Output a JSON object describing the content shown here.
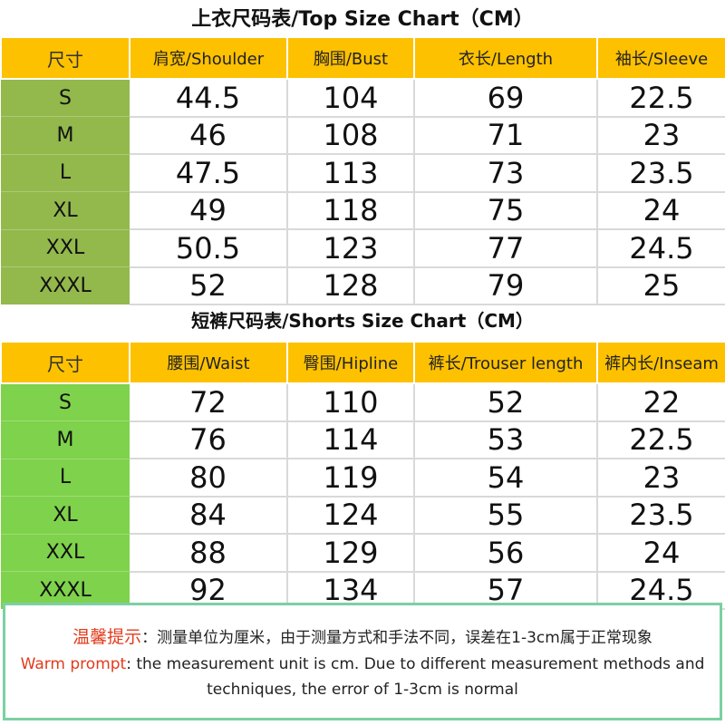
{
  "top_chart": {
    "title": "上衣尺码表/Top Size Chart（CM）",
    "headers": [
      "尺寸",
      "肩宽/Shoulder",
      "胸围/Bust",
      "衣长/Length",
      "袖长/Sleeve"
    ],
    "rows": [
      [
        "S",
        "44.5",
        "104",
        "69",
        "22.5"
      ],
      [
        "M",
        "46",
        "108",
        "71",
        "23"
      ],
      [
        "L",
        "47.5",
        "113",
        "73",
        "23.5"
      ],
      [
        "XL",
        "49",
        "118",
        "75",
        "24"
      ],
      [
        "XXL",
        "50.5",
        "123",
        "77",
        "24.5"
      ],
      [
        "XXXL",
        "52",
        "128",
        "79",
        "25"
      ]
    ]
  },
  "shorts_chart": {
    "title": "短裤尺码表/Shorts Size Chart（CM）",
    "headers": [
      "尺寸",
      "腰围/Waist",
      "臀围/Hipline",
      "裤长/Trouser length",
      "裤内长/Inseam"
    ],
    "rows": [
      [
        "S",
        "72",
        "110",
        "52",
        "22"
      ],
      [
        "M",
        "76",
        "114",
        "53",
        "22.5"
      ],
      [
        "L",
        "80",
        "119",
        "54",
        "23"
      ],
      [
        "XL",
        "84",
        "124",
        "55",
        "23.5"
      ],
      [
        "XXL",
        "88",
        "129",
        "56",
        "24"
      ],
      [
        "XXXL",
        "92",
        "134",
        "57",
        "24.5"
      ]
    ]
  },
  "note": {
    "cn_label": "温馨提示",
    "cn_text": "：测量单位为厘米，由于测量方式和手法不同，误差在1-3cm属于正常现象",
    "en_label": "Warm prompt",
    "en_text": ": the measurement unit is cm. Due to different measurement methods and techniques, the error of 1-3cm is normal"
  },
  "colors": {
    "header_yellow": "#fdc100",
    "top_size_column": "#93b84c",
    "shorts_size_column": "#7fd24b",
    "note_border": "#7bd0a2",
    "warm_prompt_red": "#e23b1b"
  }
}
